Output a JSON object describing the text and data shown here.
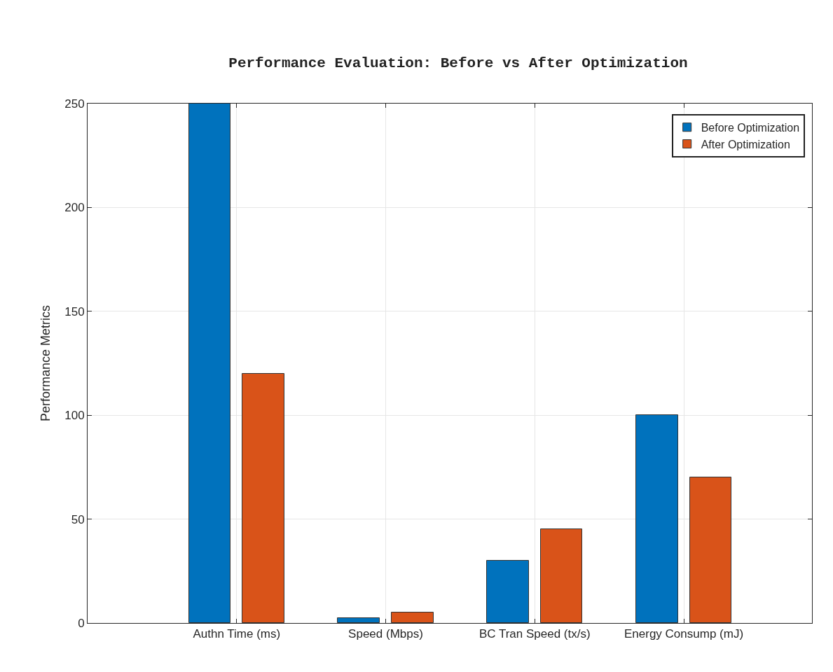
{
  "chart_data": {
    "type": "bar",
    "title": "Performance Evaluation: Before vs After Optimization",
    "ylabel": "Performance Metrics",
    "categories": [
      "Authn Time (ms)",
      "Speed (Mbps)",
      "BC Tran Speed (tx/s)",
      "Energy Consump (mJ)"
    ],
    "series": [
      {
        "name": "Before Optimization",
        "color": "#0072bd",
        "values": [
          250,
          2.5,
          30,
          100
        ]
      },
      {
        "name": "After Optimization",
        "color": "#d95319",
        "values": [
          120,
          5,
          45,
          70
        ]
      }
    ],
    "ylim": [
      0,
      250
    ],
    "yticks": [
      0,
      50,
      100,
      150,
      200,
      250
    ],
    "grid": true,
    "legend": "top right"
  }
}
